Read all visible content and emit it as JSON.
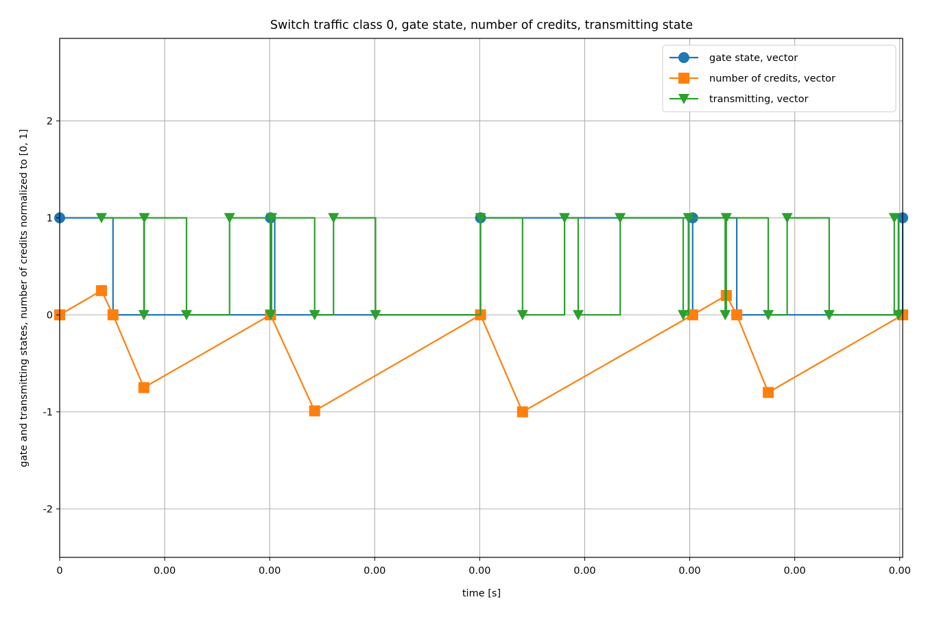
{
  "chart_data": {
    "type": "line",
    "title": "Switch traffic class 0, gate state, number of credits, transmitting state",
    "xlabel": "time [s]",
    "ylabel": "gate and transmitting states, number of credits normalized to [0, 1]",
    "xlim": [
      0,
      0.0004014
    ],
    "ylim": [
      -2.5,
      2.85
    ],
    "x_ticks": [
      0,
      5e-05,
      0.0001,
      0.00015,
      0.0002,
      0.00025,
      0.0003,
      0.00035,
      0.0004
    ],
    "x_tick_labels": [
      "0",
      "0.00",
      "0.00",
      "0.00",
      "0.00",
      "0.00",
      "0.00",
      "0.00",
      "0.00"
    ],
    "y_ticks": [
      -2,
      -1,
      0,
      1,
      2
    ],
    "y_tick_labels": [
      "-2",
      "-1",
      "0",
      "1",
      "2"
    ],
    "grid": true,
    "legend_position": "upper right",
    "series": [
      {
        "name": "gate state, vector",
        "color": "#1f77b4",
        "marker": "circle",
        "drawstyle": "steps-post",
        "x": [
          0,
          2.54e-05,
          0.0001004,
          0.0001024,
          0.0002004,
          0.0002994,
          0.0003014,
          0.0003224,
          0.0003994,
          0.0004014
        ],
        "y": [
          1,
          0,
          1,
          0,
          1,
          0,
          1,
          0,
          1,
          0
        ],
        "marker_x": [
          0,
          0.0001004,
          0.0002004,
          0.0003014,
          0.0004014
        ],
        "marker_y": [
          1,
          1,
          1,
          1,
          1
        ]
      },
      {
        "name": "number of credits, vector",
        "color": "#ff7f0e",
        "marker": "square",
        "drawstyle": "linear",
        "x": [
          0,
          1.99e-05,
          2.54e-05,
          4.01e-05,
          0.0001004,
          0.0001214,
          0.0002004,
          0.0002204,
          0.0003014,
          0.0003174,
          0.0003224,
          0.0003374,
          0.0004014
        ],
        "y": [
          0,
          0.25,
          0,
          -0.75,
          0,
          -0.99,
          0,
          -1,
          0,
          0.2,
          0,
          -0.8,
          0
        ]
      },
      {
        "name": "transmitting, vector",
        "color": "#2ca02c",
        "marker": "triangle-down",
        "drawstyle": "steps-post",
        "x": [
          1.99e-05,
          4.01e-05,
          4.03e-05,
          6.04e-05,
          8.09e-05,
          0.0001004,
          0.0001009,
          0.0001214,
          0.0001304,
          0.0001504,
          0.0002004,
          0.0002204,
          0.0002404,
          0.0002469,
          0.0002669,
          0.0002969,
          0.0002994,
          0.0003169,
          0.0003174,
          0.0003374,
          0.0003464,
          0.0003664,
          0.0003974,
          0.0003994
        ],
        "y": [
          1,
          0,
          1,
          0,
          1,
          0,
          1,
          0,
          1,
          0,
          1,
          0,
          1,
          0,
          1,
          0,
          1,
          0,
          1,
          0,
          1,
          0,
          1,
          0
        ]
      }
    ]
  }
}
